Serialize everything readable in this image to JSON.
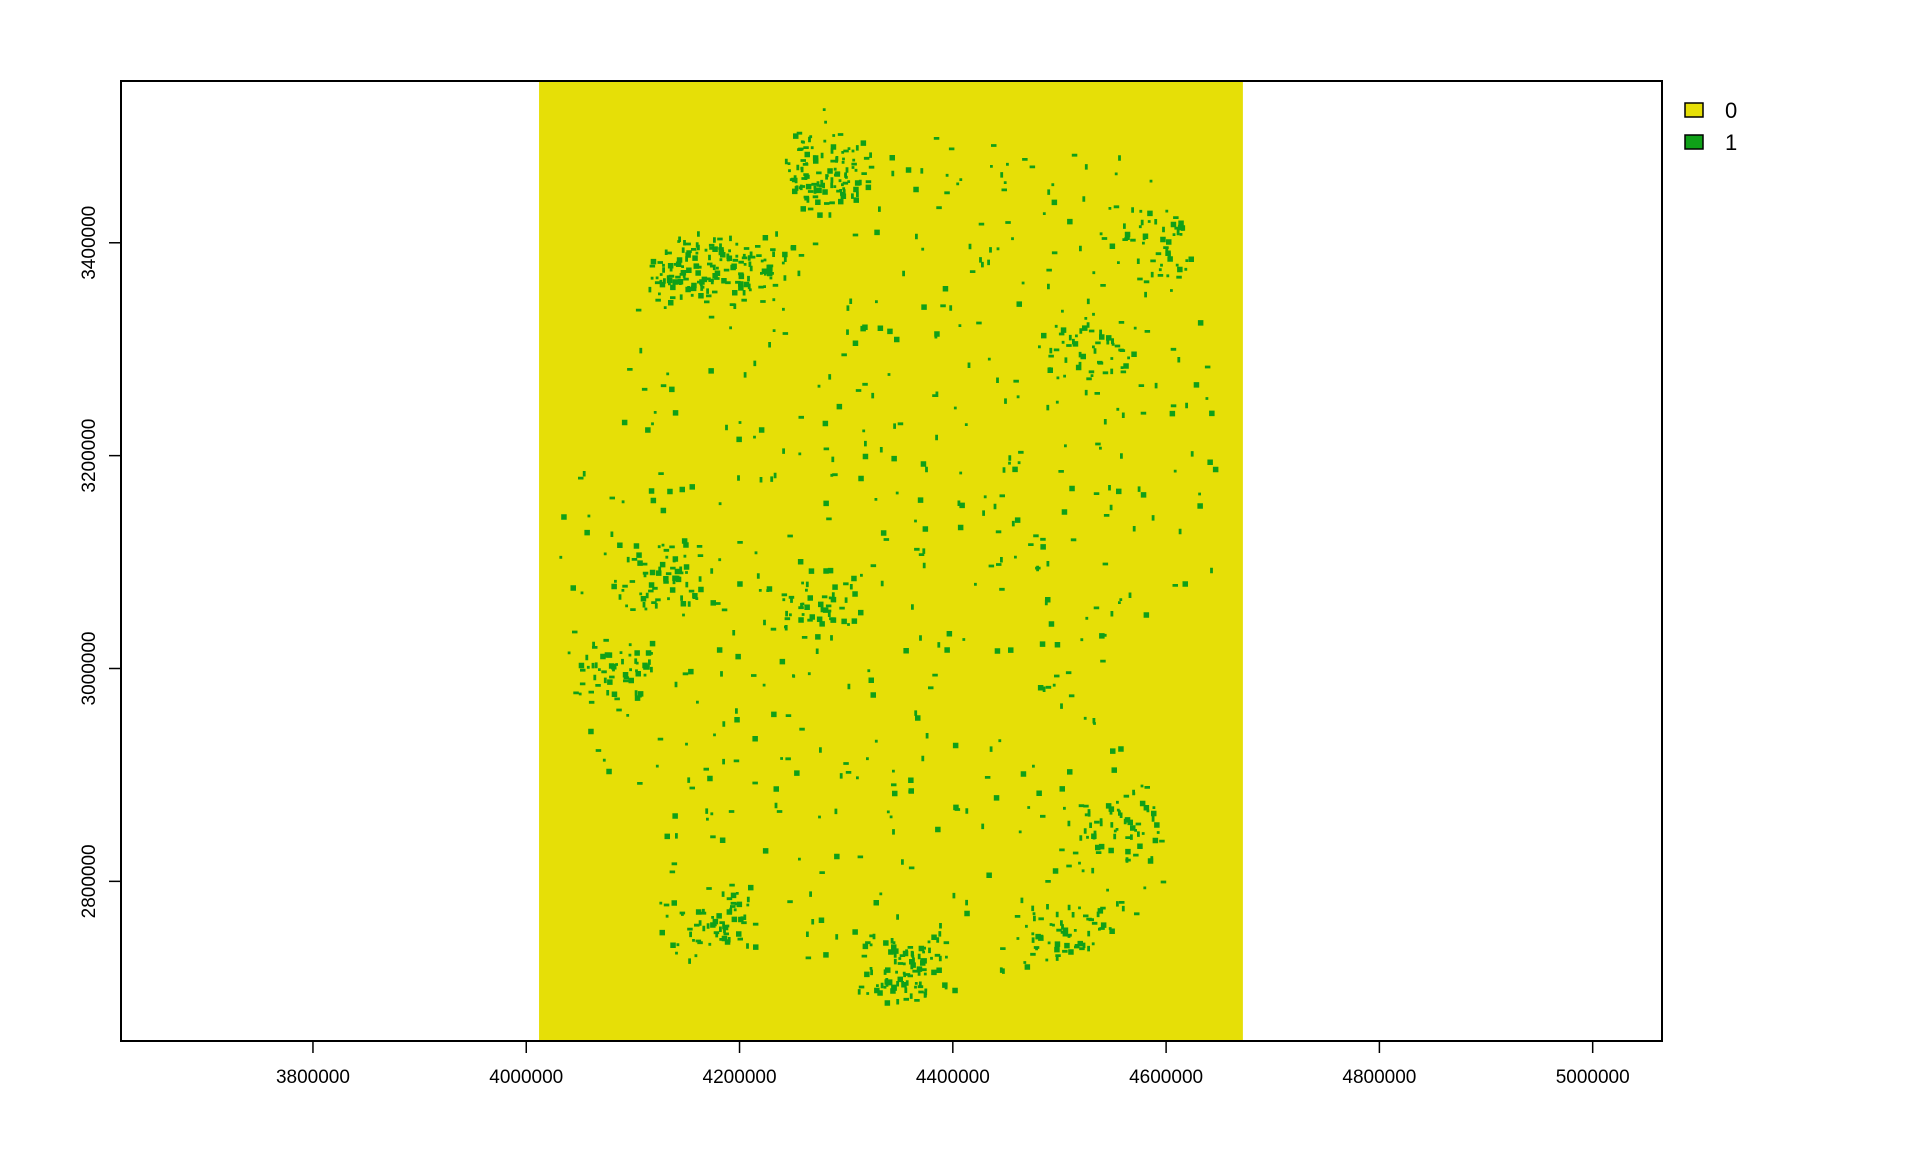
{
  "chart_data": {
    "type": "heatmap",
    "title": "",
    "xlabel": "",
    "ylabel": "",
    "xlim": [
      3620000,
      5065000
    ],
    "ylim": [
      2650000,
      3552000
    ],
    "raster_extent": {
      "xmin": 4012000,
      "xmax": 4672000,
      "ymin": 2650000,
      "ymax": 3552000
    },
    "x_ticks": [
      3800000,
      4000000,
      4200000,
      4400000,
      4600000,
      4800000,
      5000000
    ],
    "x_tick_labels": [
      "3800000",
      "4000000",
      "4200000",
      "4400000",
      "4600000",
      "4800000",
      "5000000"
    ],
    "y_ticks": [
      2800000,
      3000000,
      3200000,
      3400000
    ],
    "y_tick_labels": [
      "2800000",
      "3000000",
      "3200000",
      "3400000"
    ],
    "grid": false,
    "legend_position": "top-right",
    "legend": [
      {
        "label": "0",
        "color": "#e6df07"
      },
      {
        "label": "1",
        "color": "#0fa018"
      }
    ],
    "classes": [
      0,
      1
    ],
    "background_value": 0,
    "dense_clusters": [
      {
        "x": 4280000,
        "y": 3470000,
        "weight": 1.0
      },
      {
        "x": 4140000,
        "y": 3380000,
        "weight": 0.9
      },
      {
        "x": 4200000,
        "y": 3375000,
        "weight": 0.7
      },
      {
        "x": 4360000,
        "y": 2720000,
        "weight": 1.0
      },
      {
        "x": 4510000,
        "y": 2750000,
        "weight": 0.6
      },
      {
        "x": 4170000,
        "y": 2760000,
        "weight": 0.5
      },
      {
        "x": 4130000,
        "y": 3090000,
        "weight": 0.6
      },
      {
        "x": 4080000,
        "y": 3000000,
        "weight": 0.5
      },
      {
        "x": 4550000,
        "y": 2850000,
        "weight": 0.5
      },
      {
        "x": 4270000,
        "y": 3060000,
        "weight": 0.5
      },
      {
        "x": 4530000,
        "y": 3300000,
        "weight": 0.4
      },
      {
        "x": 4600000,
        "y": 3400000,
        "weight": 0.4
      }
    ]
  }
}
